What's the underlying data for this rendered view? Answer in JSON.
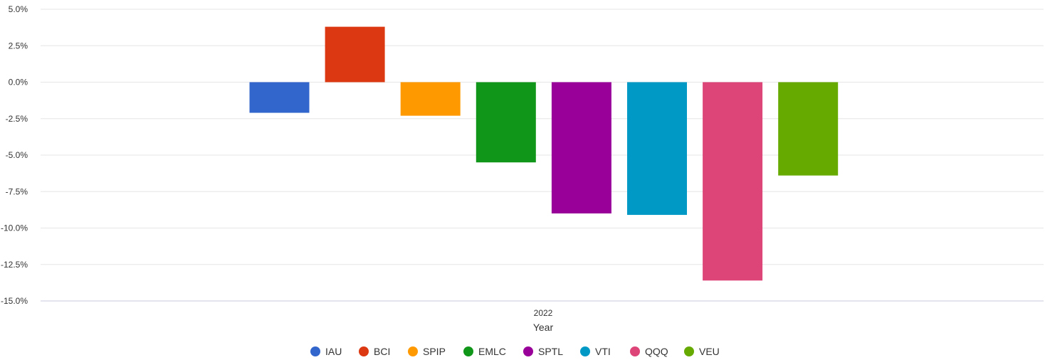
{
  "chart_data": {
    "type": "bar",
    "title": "",
    "xlabel": "Year",
    "ylabel": "",
    "categories": [
      "2022"
    ],
    "series": [
      {
        "name": "IAU",
        "values": [
          -2.1
        ],
        "color": "#3366cc"
      },
      {
        "name": "BCI",
        "values": [
          3.8
        ],
        "color": "#dc3912"
      },
      {
        "name": "SPIP",
        "values": [
          -2.3
        ],
        "color": "#ff9900"
      },
      {
        "name": "EMLC",
        "values": [
          -5.5
        ],
        "color": "#109618"
      },
      {
        "name": "SPTL",
        "values": [
          -9.0
        ],
        "color": "#990099"
      },
      {
        "name": "VTI",
        "values": [
          -9.1
        ],
        "color": "#0099c6"
      },
      {
        "name": "QQQ",
        "values": [
          -13.6
        ],
        "color": "#dd4477"
      },
      {
        "name": "VEU",
        "values": [
          -6.4
        ],
        "color": "#66aa00"
      }
    ],
    "ylim": [
      -15,
      5
    ],
    "yticks": [
      "5.0%",
      "2.5%",
      "0.0%",
      "-2.5%",
      "-5.0%",
      "-7.5%",
      "-10.0%",
      "-12.5%",
      "-15.0%"
    ],
    "ytick_values": [
      5,
      2.5,
      0,
      -2.5,
      -5,
      -7.5,
      -10,
      -12.5,
      -15
    ],
    "grid": true,
    "legend_position": "bottom"
  }
}
